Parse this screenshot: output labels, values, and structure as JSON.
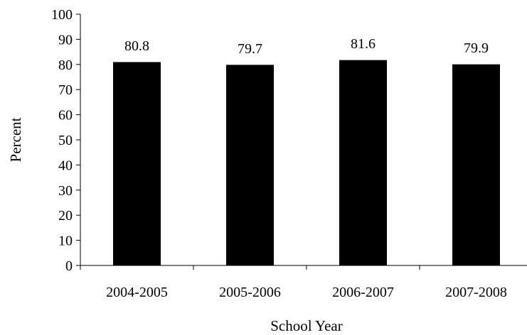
{
  "chart_data": {
    "type": "bar",
    "title": "",
    "xlabel": "School Year",
    "ylabel": "Percent",
    "categories": [
      "2004-2005",
      "2005-2006",
      "2006-2007",
      "2007-2008"
    ],
    "values": [
      80.8,
      79.7,
      81.6,
      79.9
    ],
    "value_labels": [
      "80.8",
      "79.7",
      "81.6",
      "79.9"
    ],
    "ylim": [
      0,
      100
    ],
    "yticks": [
      0,
      10,
      20,
      30,
      40,
      50,
      60,
      70,
      80,
      90,
      100
    ],
    "grid": false,
    "legend": "none",
    "bar_color": "#000000"
  }
}
